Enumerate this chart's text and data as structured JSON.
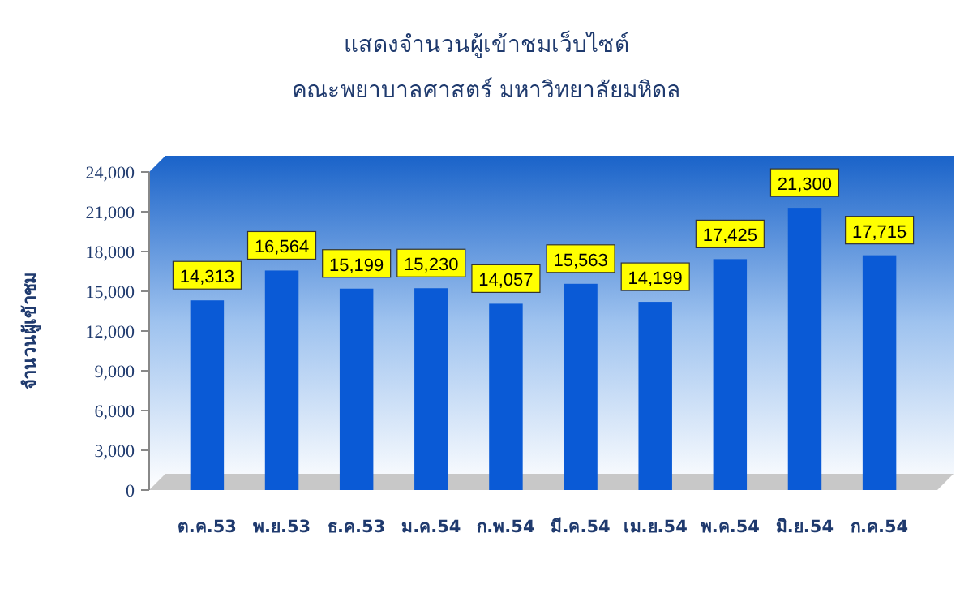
{
  "chart_data": {
    "type": "bar",
    "title": "แสดงจำนวนผู้เข้าชมเว็บไซต์",
    "subtitle": "คณะพยาบาลศาสตร์ มหาวิทยาลัยมหิดล",
    "ylabel": "จำนวนผู้เข้าชม",
    "categories": [
      "ต.ค.53",
      "พ.ย.53",
      "ธ.ค.53",
      "ม.ค.54",
      "ก.พ.54",
      "มี.ค.54",
      "เม.ย.54",
      "พ.ค.54",
      "มิ.ย.54",
      "ก.ค.54"
    ],
    "values": [
      14313,
      16564,
      15199,
      15230,
      14057,
      15563,
      14199,
      17425,
      21300,
      17715
    ],
    "value_labels": [
      "14,313",
      "16,564",
      "15,199",
      "15,230",
      "14,057",
      "15,563",
      "14,199",
      "17,425",
      "21,300",
      "17,715"
    ],
    "color": "#0a5ad6",
    "ylim": [
      0,
      24000
    ],
    "yticks": [
      0,
      {
        "value": 3000,
        "label": "3,000"
      },
      {
        "value": 6000,
        "label": "6,000"
      },
      {
        "value": 9000,
        "label": "9,000"
      },
      {
        "value": 12000,
        "label": "12,000"
      },
      {
        "value": 15000,
        "label": "15,000"
      },
      {
        "value": 18000,
        "label": "18,000"
      },
      {
        "value": 21000,
        "label": "21,000"
      },
      {
        "value": 24000,
        "label": "24,000"
      }
    ]
  }
}
